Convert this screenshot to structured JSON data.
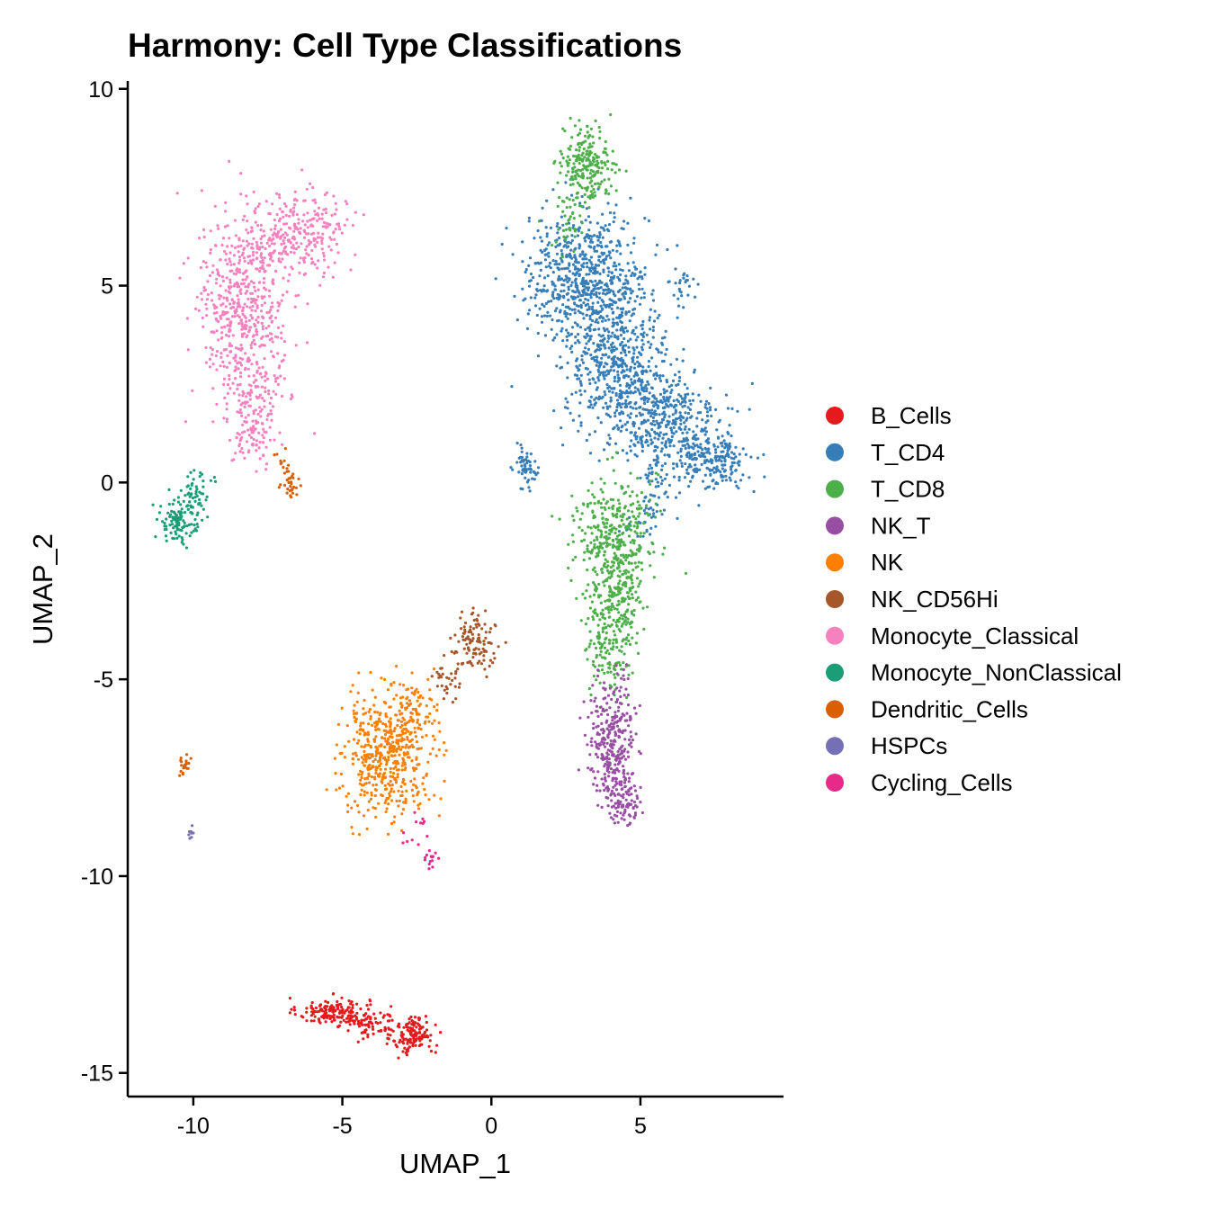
{
  "chart_data": {
    "type": "scatter",
    "title": "Harmony: Cell Type Classifications",
    "xlabel": "UMAP_1",
    "ylabel": "UMAP_2",
    "xlim": [
      -12.2,
      9.8
    ],
    "ylim": [
      -15.6,
      10.2
    ],
    "x_ticks": [
      -10,
      -5,
      0,
      5
    ],
    "x_tick_labels": [
      "-10",
      "-5",
      "0",
      "5"
    ],
    "y_ticks": [
      -15,
      -10,
      -5,
      0,
      5,
      10
    ],
    "y_tick_labels": [
      "-15",
      "-10",
      "-5",
      "0",
      "5",
      "10"
    ],
    "grid": false,
    "legend_position": "right",
    "series": [
      {
        "name": "B_Cells",
        "color": "#E41A1C",
        "clusters": [
          {
            "cx": -5.3,
            "cy": -13.45,
            "sx": 0.6,
            "sy": 0.18,
            "n": 160
          },
          {
            "cx": -4.0,
            "cy": -13.75,
            "sx": 0.4,
            "sy": 0.18,
            "n": 60
          },
          {
            "cx": -2.6,
            "cy": -14.05,
            "sx": 0.35,
            "sy": 0.25,
            "n": 140
          }
        ]
      },
      {
        "name": "T_CD4",
        "color": "#377EB8",
        "clusters": [
          {
            "cx": 3.2,
            "cy": 5.2,
            "sx": 1.05,
            "sy": 0.8,
            "n": 700
          },
          {
            "cx": 4.2,
            "cy": 3.1,
            "sx": 0.85,
            "sy": 0.75,
            "n": 450
          },
          {
            "cx": 5.6,
            "cy": 1.6,
            "sx": 1.0,
            "sy": 0.65,
            "n": 420
          },
          {
            "cx": 7.3,
            "cy": 0.55,
            "sx": 0.7,
            "sy": 0.35,
            "n": 230
          },
          {
            "cx": 5.3,
            "cy": -0.6,
            "sx": 0.4,
            "sy": 0.5,
            "n": 60
          },
          {
            "cx": 1.2,
            "cy": 0.35,
            "sx": 0.22,
            "sy": 0.28,
            "n": 55
          },
          {
            "cx": 6.6,
            "cy": 5.0,
            "sx": 0.18,
            "sy": 0.25,
            "n": 20
          }
        ]
      },
      {
        "name": "T_CD8",
        "color": "#4DAF4A",
        "clusters": [
          {
            "cx": 3.2,
            "cy": 8.1,
            "sx": 0.42,
            "sy": 0.45,
            "n": 230
          },
          {
            "cx": 2.6,
            "cy": 6.6,
            "sx": 0.3,
            "sy": 0.4,
            "n": 40
          },
          {
            "cx": 4.1,
            "cy": -1.3,
            "sx": 0.65,
            "sy": 0.75,
            "n": 350
          },
          {
            "cx": 4.1,
            "cy": -3.2,
            "sx": 0.45,
            "sy": 0.7,
            "n": 250
          },
          {
            "cx": 3.9,
            "cy": -4.6,
            "sx": 0.3,
            "sy": 0.4,
            "n": 60
          }
        ]
      },
      {
        "name": "NK_T",
        "color": "#984EA3",
        "clusters": [
          {
            "cx": 4.1,
            "cy": -6.6,
            "sx": 0.4,
            "sy": 0.75,
            "n": 320
          },
          {
            "cx": 4.4,
            "cy": -8.0,
            "sx": 0.3,
            "sy": 0.35,
            "n": 90
          }
        ]
      },
      {
        "name": "NK",
        "color": "#FF7F00",
        "clusters": [
          {
            "cx": -3.5,
            "cy": -6.9,
            "sx": 0.75,
            "sy": 0.75,
            "n": 500
          },
          {
            "cx": -2.6,
            "cy": -5.8,
            "sx": 0.45,
            "sy": 0.4,
            "n": 80
          }
        ]
      },
      {
        "name": "NK_CD56Hi",
        "color": "#A65628",
        "clusters": [
          {
            "cx": -0.6,
            "cy": -4.1,
            "sx": 0.35,
            "sy": 0.35,
            "n": 110
          },
          {
            "cx": -1.5,
            "cy": -5.0,
            "sx": 0.25,
            "sy": 0.3,
            "n": 30
          }
        ]
      },
      {
        "name": "Monocyte_Classical",
        "color": "#F781BF",
        "clusters": [
          {
            "cx": -8.3,
            "cy": 4.4,
            "sx": 0.75,
            "sy": 1.2,
            "n": 520
          },
          {
            "cx": -6.5,
            "cy": 6.3,
            "sx": 0.85,
            "sy": 0.55,
            "n": 280
          },
          {
            "cx": -8.0,
            "cy": 2.4,
            "sx": 0.45,
            "sy": 0.55,
            "n": 90
          },
          {
            "cx": -8.0,
            "cy": 1.2,
            "sx": 0.35,
            "sy": 0.35,
            "n": 70
          }
        ]
      },
      {
        "name": "Monocyte_NonClassical",
        "color": "#1B9E77",
        "clusters": [
          {
            "cx": -10.5,
            "cy": -1.0,
            "sx": 0.35,
            "sy": 0.3,
            "n": 110
          },
          {
            "cx": -9.9,
            "cy": -0.3,
            "sx": 0.25,
            "sy": 0.35,
            "n": 50
          }
        ]
      },
      {
        "name": "Dendritic_Cells",
        "color": "#D95F02",
        "clusters": [
          {
            "cx": -6.7,
            "cy": -0.1,
            "sx": 0.15,
            "sy": 0.2,
            "n": 25
          },
          {
            "cx": -7.0,
            "cy": 0.4,
            "sx": 0.15,
            "sy": 0.2,
            "n": 15
          },
          {
            "cx": -10.3,
            "cy": -7.2,
            "sx": 0.12,
            "sy": 0.15,
            "n": 20
          }
        ]
      },
      {
        "name": "HSPCs",
        "color": "#7570B3",
        "clusters": [
          {
            "cx": -10.1,
            "cy": -8.85,
            "sx": 0.05,
            "sy": 0.1,
            "n": 8
          }
        ]
      },
      {
        "name": "Cycling_Cells",
        "color": "#E7298A",
        "clusters": [
          {
            "cx": -2.0,
            "cy": -9.55,
            "sx": 0.15,
            "sy": 0.12,
            "n": 15
          },
          {
            "cx": -2.7,
            "cy": -8.9,
            "sx": 0.25,
            "sy": 0.3,
            "n": 12
          }
        ]
      }
    ]
  }
}
